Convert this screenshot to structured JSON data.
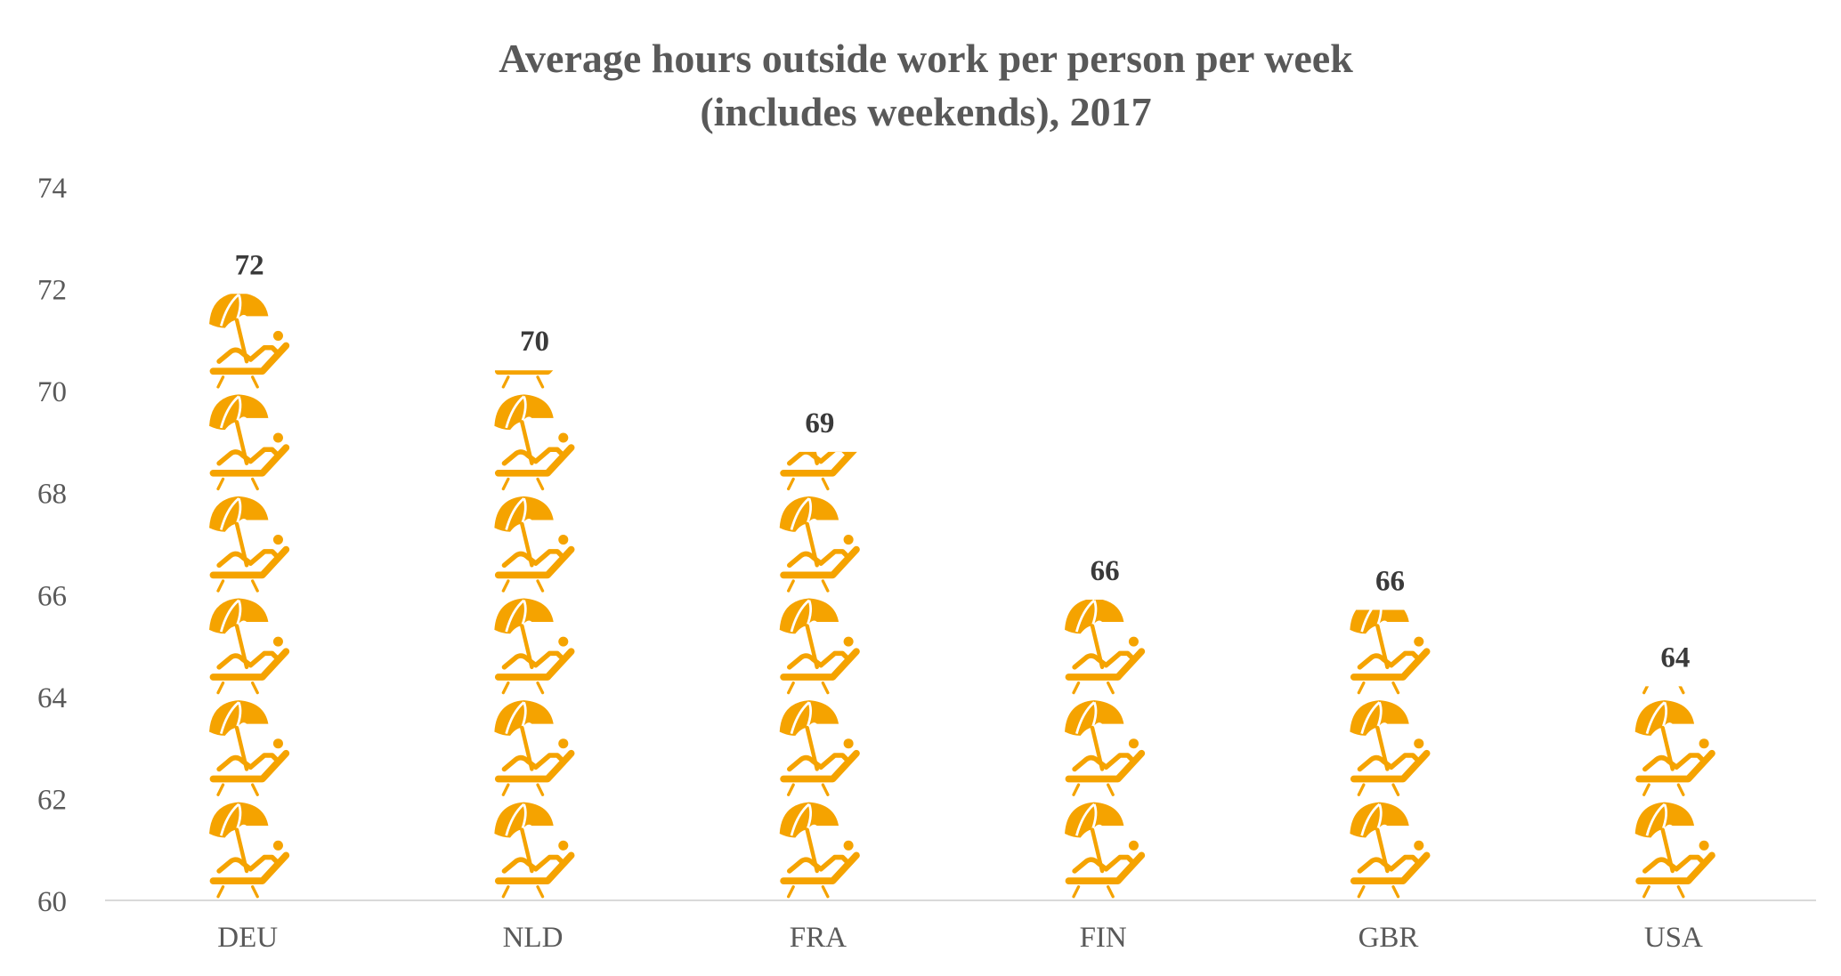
{
  "chart_data": {
    "type": "bar",
    "style": "pictograph",
    "icon": "beach-umbrella-sunbed-icon",
    "title": "Average hours outside work per person per week (includes weekends), 2017",
    "title_lines": [
      "Average hours outside work per person per week",
      "(includes weekends), 2017"
    ],
    "categories": [
      "DEU",
      "NLD",
      "FRA",
      "FIN",
      "GBR",
      "USA"
    ],
    "values": [
      71.9,
      70.4,
      68.8,
      65.9,
      65.7,
      64.2
    ],
    "data_labels": [
      "72",
      "70",
      "69",
      "66",
      "66",
      "64"
    ],
    "ylim": [
      60,
      74
    ],
    "yticks": [
      "60",
      "62",
      "64",
      "66",
      "68",
      "70",
      "72",
      "74"
    ],
    "xlabel": "",
    "ylabel": "",
    "grid": false,
    "legend": "none",
    "colors": {
      "icon": "#F5A300",
      "axis": "#d9d9d9",
      "text": "#595959",
      "label": "#3a3a3a"
    }
  }
}
